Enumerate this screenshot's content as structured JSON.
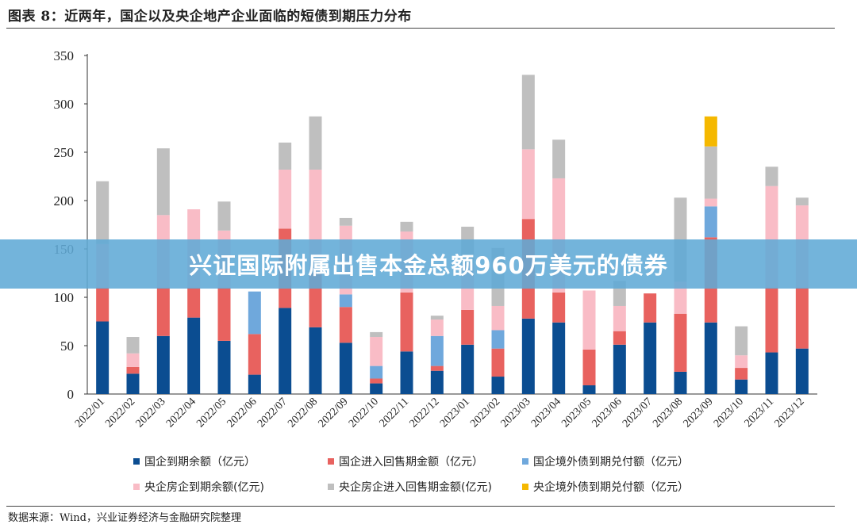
{
  "figure": {
    "title": "图表 8：近两年，国企以及央企地产企业面临的短债到期压力分布",
    "source": "数据来源：Wind，兴业证券经济与金融研究院整理"
  },
  "banner": {
    "text": "兴证国际附属出售本金总额960万美元的债券"
  },
  "chart_data": {
    "type": "bar",
    "stacked": true,
    "categories": [
      "2022/01",
      "2022/02",
      "2022/03",
      "2022/04",
      "2022/05",
      "2022/06",
      "2022/07",
      "2022/08",
      "2022/09",
      "2022/10",
      "2022/11",
      "2022/12",
      "2023/01",
      "2023/02",
      "2023/03",
      "2023/04",
      "2023/05",
      "2023/06",
      "2023/07",
      "2023/08",
      "2023/09",
      "2023/10",
      "2023/11",
      "2023/12"
    ],
    "ylim": [
      0,
      350
    ],
    "yticks": [
      0,
      50,
      100,
      150,
      200,
      250,
      300,
      350
    ],
    "xlabel": "",
    "ylabel": "",
    "grid": false,
    "legend_position": "bottom",
    "series": [
      {
        "name": "国企到期余额（亿元）",
        "color": "#0b4d91",
        "values": [
          75,
          21,
          60,
          79,
          55,
          20,
          89,
          69,
          53,
          11,
          44,
          24,
          51,
          18,
          78,
          74,
          9,
          51,
          74,
          23,
          74,
          15,
          43,
          47
        ]
      },
      {
        "name": "国企进入回售期金额（亿元）",
        "color": "#e8625f",
        "values": [
          35,
          7,
          50,
          31,
          55,
          42,
          82,
          56,
          37,
          5,
          61,
          5,
          36,
          29,
          103,
          31,
          37,
          14,
          30,
          60,
          88,
          12,
          67,
          63
        ]
      },
      {
        "name": "国企境外债到期兑付额（亿元）",
        "color": "#6fa8dc",
        "values": [
          0,
          0,
          0,
          0,
          0,
          44,
          0,
          0,
          13,
          13,
          0,
          31,
          0,
          19,
          0,
          0,
          0,
          0,
          0,
          0,
          32,
          0,
          0,
          0
        ]
      },
      {
        "name": "央企房企到期余额(亿元)",
        "color": "#f9bcc6",
        "values": [
          45,
          14,
          75,
          81,
          59,
          0,
          61,
          107,
          71,
          30,
          63,
          17,
          48,
          25,
          72,
          118,
          61,
          26,
          0,
          33,
          8,
          13,
          105,
          85
        ]
      },
      {
        "name": "央企房企进入回售期金额(亿元)",
        "color": "#bfbfbf",
        "values": [
          65,
          17,
          69,
          0,
          30,
          0,
          28,
          55,
          8,
          5,
          10,
          4,
          38,
          60,
          77,
          40,
          0,
          26,
          0,
          87,
          54,
          30,
          20,
          8
        ]
      },
      {
        "name": "央企境外债到期兑付额（亿元）",
        "color": "#f5b800",
        "values": [
          0,
          0,
          0,
          0,
          0,
          0,
          0,
          0,
          0,
          0,
          0,
          0,
          0,
          0,
          0,
          0,
          0,
          0,
          0,
          0,
          31,
          0,
          0,
          0
        ]
      }
    ]
  }
}
